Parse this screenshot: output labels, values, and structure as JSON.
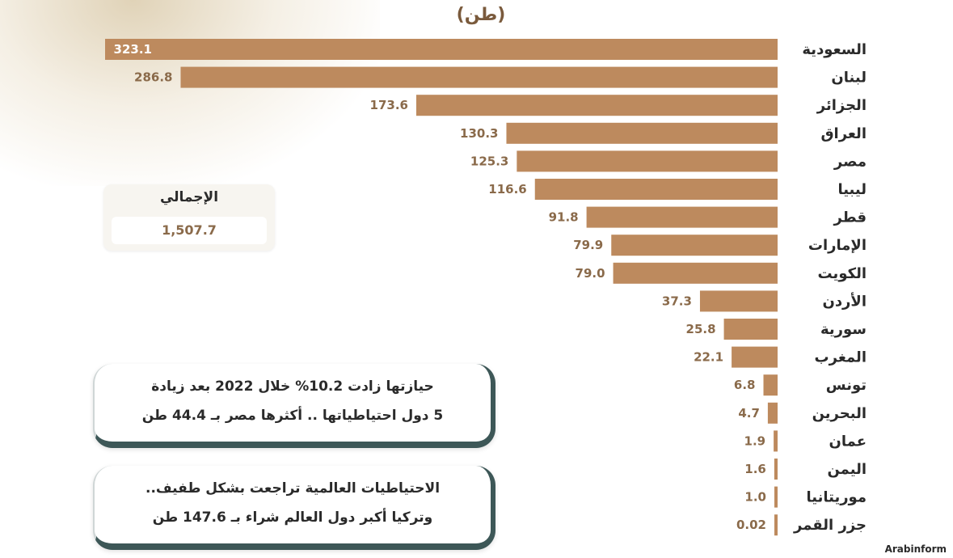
{
  "unit_label": "(طن)",
  "total": {
    "label": "الإجمالي",
    "value": "1,507.7"
  },
  "notes": [
    {
      "line1": "حيازتها زادت 10.2% خلال 2022 بعد زيادة",
      "line2": "5 دول احتياطياتها .. أكثرها مصر بـ 44.4 طن"
    },
    {
      "line1": "الاحتياطيات العالمية تراجعت بشكل طفيف..",
      "line2": "وتركيا أكبر دول العالم شراء بـ 147.6 طن"
    }
  ],
  "credit": "Arabinform",
  "colors": {
    "bar": "#bd8a5e",
    "label": "#8a6a4a",
    "note_border": "#3d5757"
  },
  "chart_data": {
    "type": "bar",
    "orientation": "horizontal",
    "categories": [
      "السعودية",
      "لبنان",
      "الجزائر",
      "العراق",
      "مصر",
      "ليبيا",
      "قطر",
      "الإمارات",
      "الكويت",
      "الأردن",
      "سورية",
      "المغرب",
      "تونس",
      "البحرين",
      "عمان",
      "اليمن",
      "موريتانيا",
      "جزر القمر"
    ],
    "values": [
      323.1,
      286.8,
      173.6,
      130.3,
      125.3,
      116.6,
      91.8,
      79.9,
      79.0,
      37.3,
      25.8,
      22.1,
      6.8,
      4.7,
      1.9,
      1.6,
      1.0,
      0.02
    ],
    "value_labels": [
      "323.1",
      "286.8",
      "173.6",
      "130.3",
      "125.3",
      "116.6",
      "91.8",
      "79.9",
      "79.0",
      "37.3",
      "25.8",
      "22.1",
      "6.8",
      "4.7",
      "1.9",
      "1.6",
      "1.0",
      "0.02"
    ],
    "title": "",
    "xlabel": "",
    "ylabel": "(طن)",
    "xlim": [
      0,
      323.1
    ],
    "grid": false,
    "legend": "none"
  }
}
